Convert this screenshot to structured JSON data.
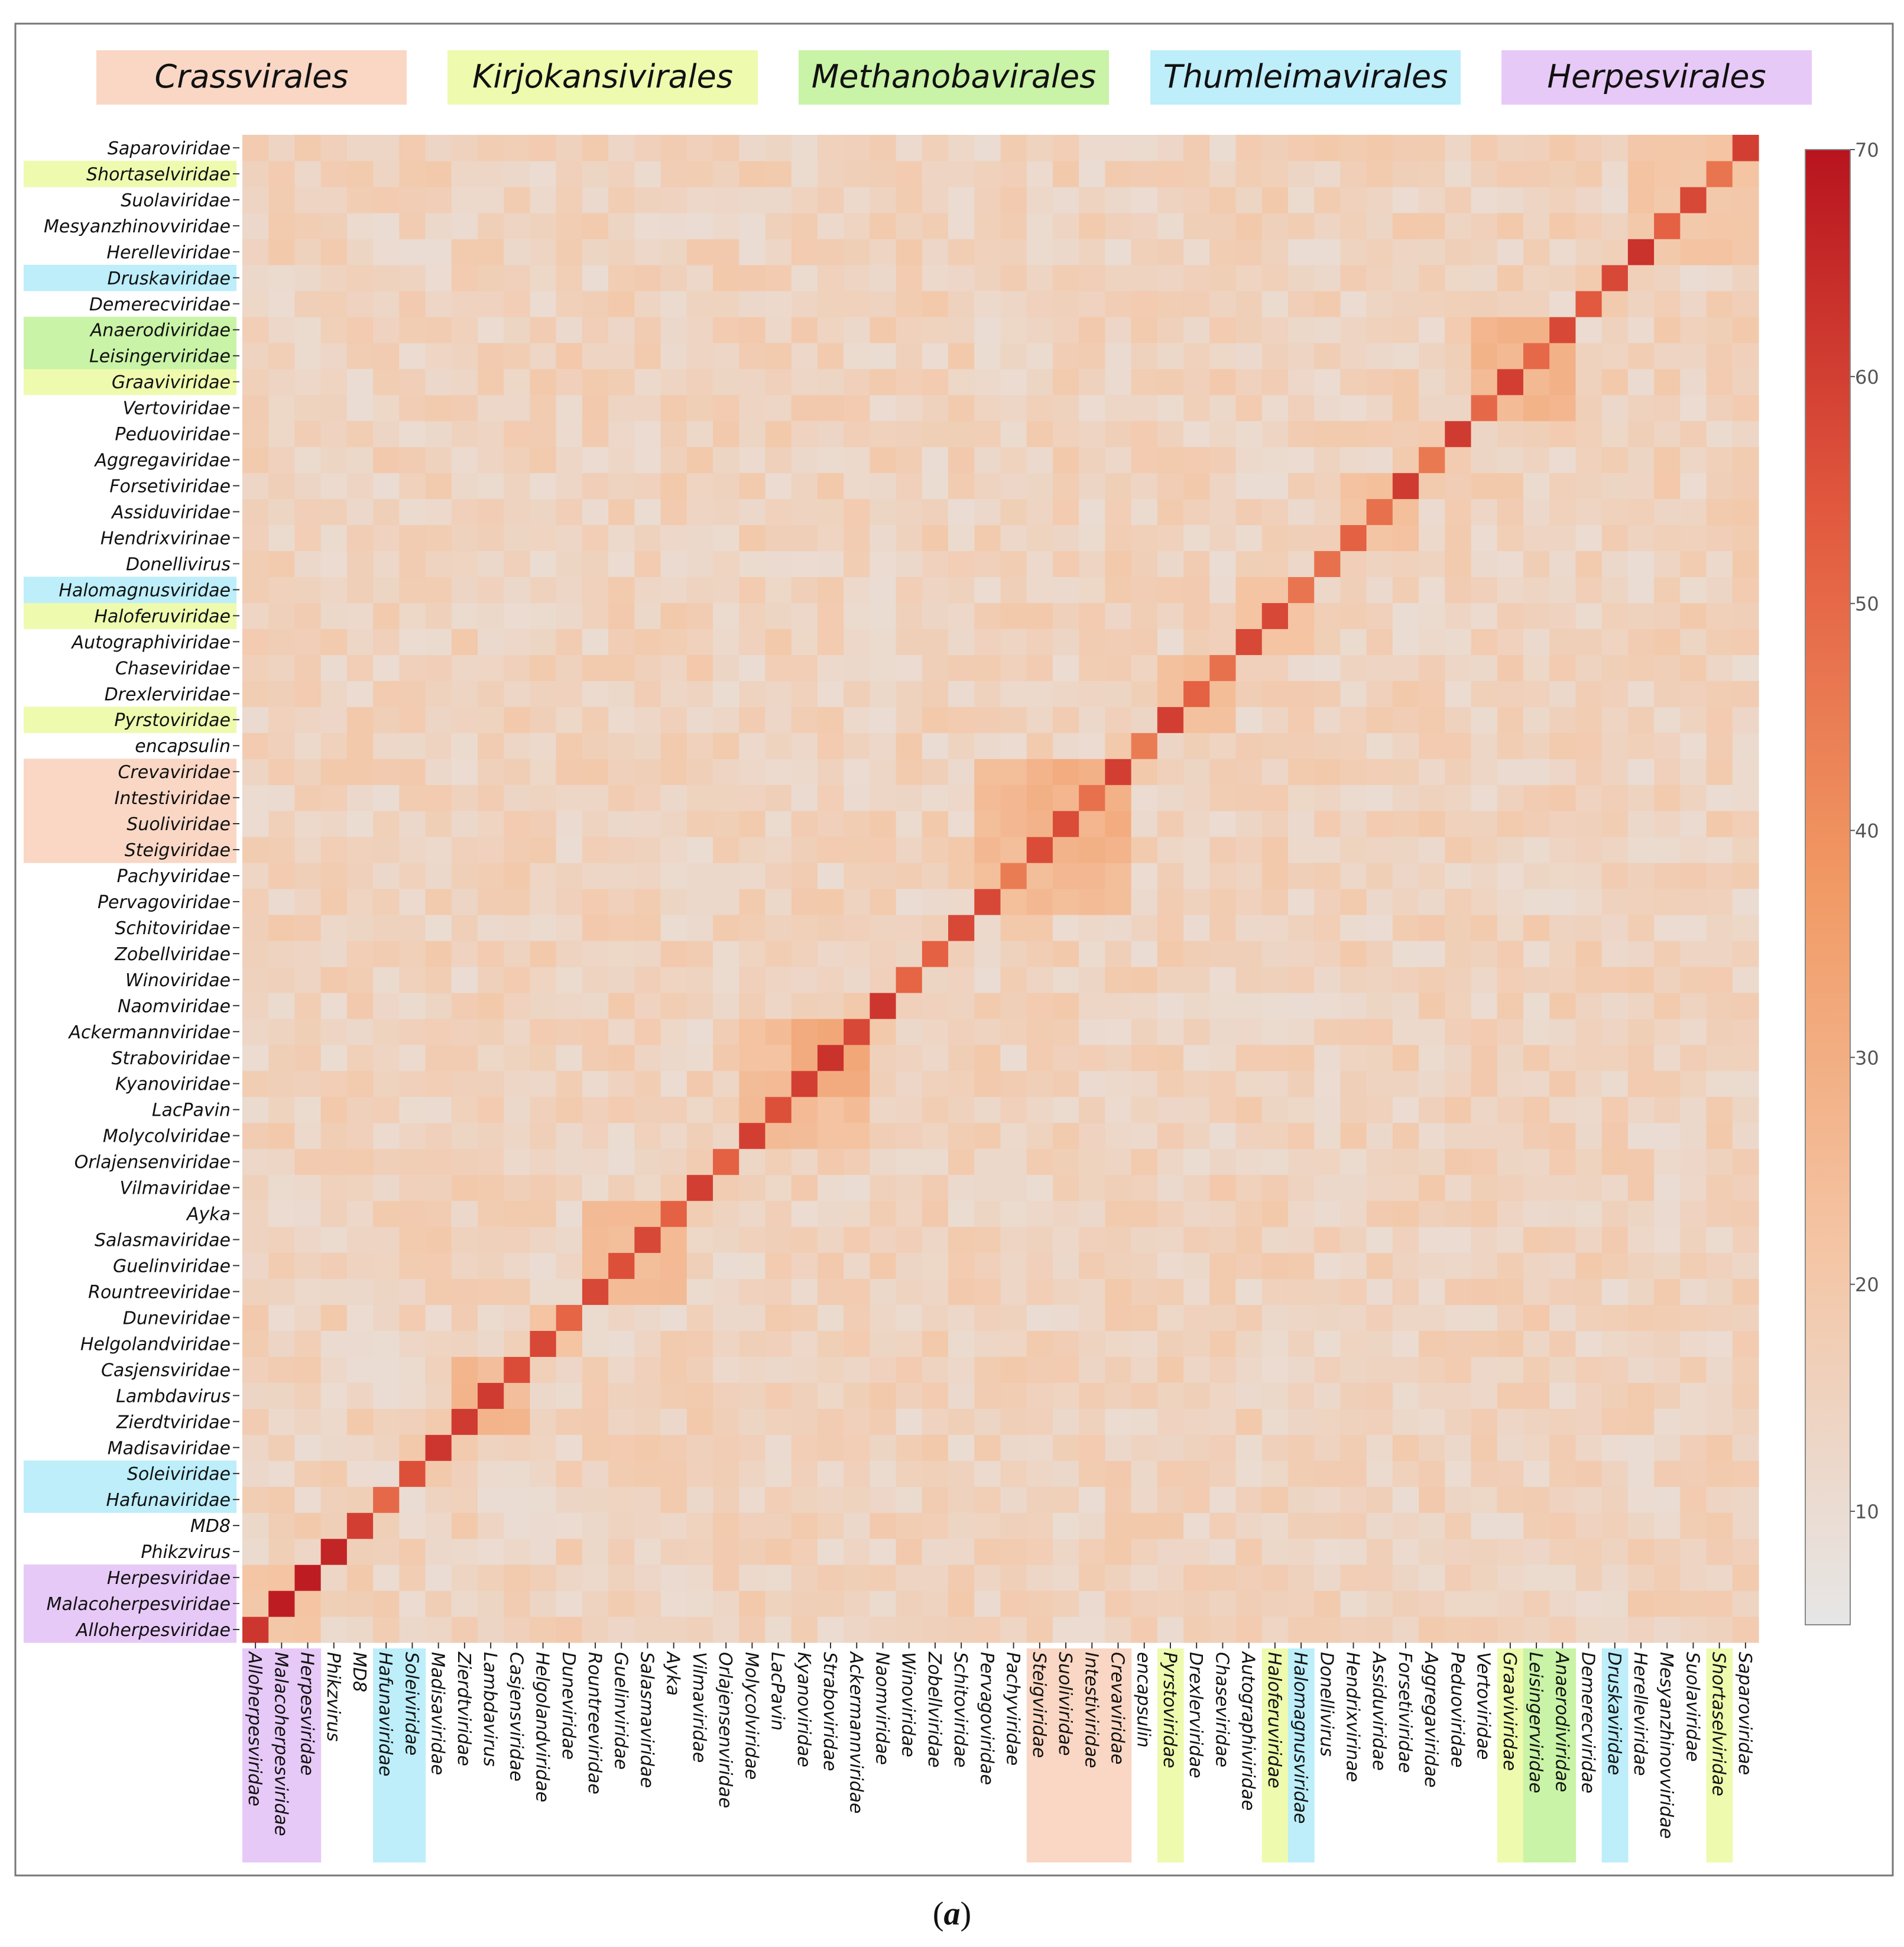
{
  "figure_caption": {
    "label": "a"
  },
  "chart_data": {
    "type": "heatmap",
    "title": "",
    "xlabel": "",
    "ylabel": "",
    "colorbar": {
      "min": 5,
      "max": 70,
      "ticks": [
        10,
        20,
        30,
        40,
        50,
        60,
        70
      ],
      "colors": [
        "#e6e6e6",
        "#f4c6a6",
        "#f19a65",
        "#e25a3f",
        "#b8141e"
      ]
    },
    "orders": [
      {
        "name": "Crassvirales",
        "color": "#f9d7c4"
      },
      {
        "name": "Kirjokansivirales",
        "color": "#eefaae"
      },
      {
        "name": "Methanobavirales",
        "color": "#c9f3a6"
      },
      {
        "name": "Thumleimavirales",
        "color": "#bdeefa"
      },
      {
        "name": "Herpesvirales",
        "color": "#e7c9f7"
      }
    ],
    "labels": [
      "Alloherpesviridae",
      "Malacoherpesviridae",
      "Herpesviridae",
      "Phikzvirus",
      "MD8",
      "Hafunaviridae",
      "Soleiviridae",
      "Madisaviridae",
      "Zierdtviridae",
      "Lambdavirus",
      "Casjensviridae",
      "Helgolandviridae",
      "Duneviridae",
      "Rountreeviridae",
      "Guelinviridae",
      "Salasmaviridae",
      "Ayka",
      "Vilmaviridae",
      "Orlajensenviridae",
      "Molycolviridae",
      "LacPavin",
      "Kyanoviridae",
      "Straboviridae",
      "Ackermannviridae",
      "Naomviridae",
      "Winoviridae",
      "Zobellviridae",
      "Schitoviridae",
      "Pervagoviridae",
      "Pachyviridae",
      "Steigviridae",
      "Suoliviridae",
      "Intestiviridae",
      "Crevaviridae",
      "encapsulin",
      "Pyrstoviridae",
      "Drexlerviridae",
      "Chaseviridae",
      "Autographiviridae",
      "Haloferuviridae",
      "Halomagnusviridae",
      "Donellivirus",
      "Hendrixvirinae",
      "Assiduviridae",
      "Forsetiviridae",
      "Aggregaviridae",
      "Peduoviridae",
      "Vertoviridae",
      "Graaviviridae",
      "Leisingerviridae",
      "Anaerodiviridae",
      "Demerecviridae",
      "Druskaviridae",
      "Herelleviridae",
      "Mesyanzhinovviridae",
      "Suolaviridae",
      "Shortaselviridae",
      "Saparoviridae"
    ],
    "label_order_membership": {
      "Alloherpesviridae": 4,
      "Malacoherpesviridae": 4,
      "Herpesviridae": 4,
      "Hafunaviridae": 3,
      "Soleiviridae": 3,
      "Steigviridae": 0,
      "Suoliviridae": 0,
      "Intestiviridae": 0,
      "Crevaviridae": 0,
      "Pyrstoviridae": 1,
      "Haloferuviridae": 1,
      "Halomagnusviridae": 3,
      "Graaviviridae": 1,
      "Leisingerviridae": 2,
      "Anaerodiviridae": 2,
      "Druskaviridae": 3,
      "Shortaselviridae": 1
    },
    "diagonal_values": [
      62,
      68,
      68,
      66,
      60,
      50,
      56,
      62,
      61,
      61,
      57,
      58,
      51,
      58,
      56,
      58,
      52,
      60,
      52,
      60,
      56,
      60,
      63,
      58,
      62,
      51,
      52,
      58,
      58,
      45,
      57,
      57,
      48,
      60,
      45,
      60,
      52,
      48,
      58,
      58,
      47,
      48,
      52,
      48,
      61,
      46,
      61,
      50,
      60,
      50,
      58,
      54,
      58,
      63,
      52,
      58,
      47,
      60
    ],
    "off_diagonal_typical_range": [
      10,
      20
    ],
    "blocks": [
      {
        "rows": [
          "Alloherpesviridae",
          "Herpesviridae"
        ],
        "value": 22
      },
      {
        "rows": [
          "Zierdtviridae",
          "Casjensviridae"
        ],
        "value": 26
      },
      {
        "rows": [
          "Helgolandviridae",
          "Duneviridae"
        ],
        "value": 24
      },
      {
        "rows": [
          "Rountreeviridae",
          "Ayka"
        ],
        "value": 24
      },
      {
        "rows": [
          "Molycolviridae",
          "Ackermannviridae"
        ],
        "value": 24
      },
      {
        "rows": [
          "Kyanoviridae",
          "Ackermannviridae"
        ],
        "value": 31
      },
      {
        "rows": [
          "Pervagoviridae",
          "Crevaviridae"
        ],
        "value": 25
      },
      {
        "rows": [
          "Steigviridae",
          "Crevaviridae"
        ],
        "value": 29
      },
      {
        "rows": [
          "Pyrstoviridae",
          "Chaseviridae"
        ],
        "value": 24
      },
      {
        "rows": [
          "Autographiviridae",
          "Halomagnusviridae"
        ],
        "value": 23
      },
      {
        "rows": [
          "Hendrixvirinae",
          "Forsetiviridae"
        ],
        "value": 22
      },
      {
        "rows": [
          "Vertoviridae",
          "Anaerodiviridae"
        ],
        "value": 27
      },
      {
        "rows": [
          "Herelleviridae",
          "Saparoviridae"
        ],
        "value": 21
      }
    ]
  }
}
